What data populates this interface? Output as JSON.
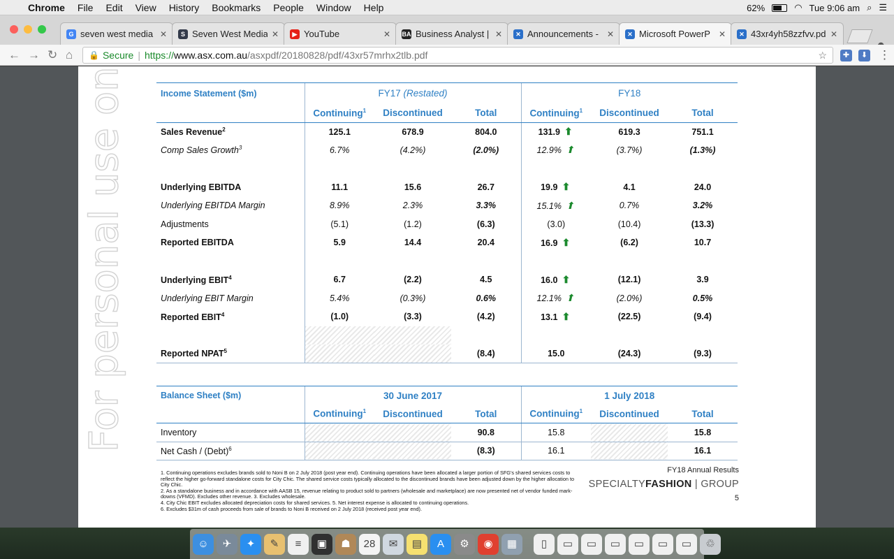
{
  "menubar": {
    "apple": "",
    "app": "Chrome",
    "items": [
      "File",
      "Edit",
      "View",
      "History",
      "Bookmarks",
      "People",
      "Window",
      "Help"
    ],
    "battery": "62%",
    "time": "Tue 9:06 am"
  },
  "tabs": [
    {
      "label": "seven west media",
      "icon": "google-icon",
      "color": "#4285f4",
      "glyph": "G"
    },
    {
      "label": "Seven West Media",
      "icon": "s-logo-icon",
      "color": "#333a4a",
      "glyph": "S"
    },
    {
      "label": "YouTube",
      "icon": "youtube-icon",
      "color": "#e62117",
      "glyph": "▶"
    },
    {
      "label": "Business Analyst |",
      "icon": "ba-icon",
      "color": "#222222",
      "glyph": "BA"
    },
    {
      "label": "Announcements -",
      "icon": "asx-icon",
      "color": "#2a6fc9",
      "glyph": "✕"
    },
    {
      "label": "Microsoft PowerP",
      "icon": "asx-icon",
      "color": "#2a6fc9",
      "glyph": "✕"
    },
    {
      "label": "43xr4yh58zzfvv.pd",
      "icon": "asx-icon",
      "color": "#2a6fc9",
      "glyph": "✕"
    }
  ],
  "address": {
    "secure": "Secure",
    "scheme": "https://",
    "host": "www.asx.com.au",
    "path": "/asxpdf/20180828/pdf/43xr57mrhx2tlb.pdf"
  },
  "watermark": "For personal use only",
  "income": {
    "title": "Income Statement ($m)",
    "fy17": "FY17",
    "fy17_note": "(Restated)",
    "fy18": "FY18",
    "cols": [
      "Continuing",
      "Discontinued",
      "Total",
      "Continuing",
      "Discontinued",
      "Total"
    ],
    "rows": [
      {
        "label": "Sales Revenue",
        "sup": "2",
        "vals": [
          "125.1",
          "678.9",
          "804.0",
          "131.9",
          "619.3",
          "751.1"
        ]
      },
      {
        "label": "Comp Sales Growth",
        "sup": "3",
        "vals": [
          "6.7%",
          "(4.2%)",
          "(2.0%)",
          "12.9%",
          "(3.7%)",
          "(1.3%)"
        ]
      },
      {
        "label": "Underlying EBITDA",
        "vals": [
          "11.1",
          "15.6",
          "26.7",
          "19.9",
          "4.1",
          "24.0"
        ]
      },
      {
        "label": "Underlying EBITDA Margin",
        "vals": [
          "8.9%",
          "2.3%",
          "3.3%",
          "15.1%",
          "0.7%",
          "3.2%"
        ]
      },
      {
        "label": "Adjustments",
        "vals": [
          "(5.1)",
          "(1.2)",
          "(6.3)",
          "(3.0)",
          "(10.4)",
          "(13.3)"
        ]
      },
      {
        "label": "Reported EBITDA",
        "vals": [
          "5.9",
          "14.4",
          "20.4",
          "16.9",
          "(6.2)",
          "10.7"
        ]
      },
      {
        "label": "Underlying EBIT",
        "sup": "4",
        "vals": [
          "6.7",
          "(2.2)",
          "4.5",
          "16.0",
          "(12.1)",
          "3.9"
        ]
      },
      {
        "label": "Underlying EBIT Margin",
        "vals": [
          "5.4%",
          "(0.3%)",
          "0.6%",
          "12.1%",
          "(2.0%)",
          "0.5%"
        ]
      },
      {
        "label": "Reported EBIT",
        "sup": "4",
        "vals": [
          "(1.0)",
          "(3.3)",
          "(4.2)",
          "13.1",
          "(22.5)",
          "(9.4)"
        ]
      },
      {
        "label": "Reported NPAT",
        "sup": "5",
        "vals": [
          "",
          "",
          "(8.4)",
          "15.0",
          "(24.3)",
          "(9.3)"
        ]
      }
    ]
  },
  "balance": {
    "title": "Balance Sheet ($m)",
    "p1": "30 June 2017",
    "p2": "1 July 2018",
    "cols": [
      "Continuing",
      "Discontinued",
      "Total",
      "Continuing",
      "Discontinued",
      "Total"
    ],
    "rows": [
      {
        "label": "Inventory",
        "vals": [
          "",
          "",
          "90.8",
          "15.8",
          "",
          "15.8"
        ]
      },
      {
        "label": "Net Cash / (Debt)",
        "sup": "6",
        "vals": [
          "",
          "",
          "(8.3)",
          "16.1",
          "",
          "16.1"
        ]
      }
    ]
  },
  "footnotes": [
    "1. Continuing operations excludes brands sold to Noni B on 2 July 2018 (post year end). Continuing operations have been allocated a larger portion of SFG's shared services costs to reflect the higher go-forward standalone costs for City Chic. The shared service costs typically allocated to the discontinued brands have been adjusted down by the higher allocation to City Chic.",
    "2. As a standalone business and in accordance with AASB 15, revenue relating to product sold to partners (wholesale and marketplace) are now presented net of vendor funded mark-downs (VFMD). Excludes other revenue.      3. Excludes wholesale.",
    "4. City Chic EBIT excludes allocated depreciation costs for shared services.      5. Net interest expense is allocated to continuing operations.",
    "6. Excludes $31m of cash proceeds from sale of brands to Noni B received on 2 July 2018 (received post year end)."
  ],
  "brand": {
    "report": "FY18 Annual Results",
    "logo_a": "SPECIALTY",
    "logo_b": "FASHION",
    "logo_c": " | GROUP",
    "page": "5"
  },
  "dock": [
    {
      "name": "finder-icon",
      "color": "#3d8fe0",
      "glyph": "☺"
    },
    {
      "name": "launchpad-icon",
      "color": "#7a8a9a",
      "glyph": "✈"
    },
    {
      "name": "safari-icon",
      "color": "#2a8ff0",
      "glyph": "✦"
    },
    {
      "name": "notes-icon",
      "color": "#e8c070",
      "glyph": "✎"
    },
    {
      "name": "reminders-icon",
      "color": "#f0f0f0",
      "glyph": "≡"
    },
    {
      "name": "photo-booth-icon",
      "color": "#303030",
      "glyph": "▣"
    },
    {
      "name": "contacts-icon",
      "color": "#b08858",
      "glyph": "☗"
    },
    {
      "name": "calendar-icon",
      "color": "#f4f4f4",
      "glyph": "28"
    },
    {
      "name": "preview-icon",
      "color": "#d0d8e0",
      "glyph": "✉"
    },
    {
      "name": "stickies-icon",
      "color": "#f6e070",
      "glyph": "▤"
    },
    {
      "name": "app-store-icon",
      "color": "#2a8ff0",
      "glyph": "A"
    },
    {
      "name": "system-preferences-icon",
      "color": "#8a8a8a",
      "glyph": "⚙"
    },
    {
      "name": "chrome-icon",
      "color": "#e04030",
      "glyph": "◉"
    },
    {
      "name": "image-capture-icon",
      "color": "#90a0b0",
      "glyph": "▦"
    },
    {
      "name": "document-icon",
      "color": "#f0f0f0",
      "glyph": "▯"
    },
    {
      "name": "document-icon",
      "color": "#f0f0f0",
      "glyph": "▭"
    },
    {
      "name": "document-icon",
      "color": "#f0f0f0",
      "glyph": "▭"
    },
    {
      "name": "document-icon",
      "color": "#f0f0f0",
      "glyph": "▭"
    },
    {
      "name": "document-icon",
      "color": "#f0f0f0",
      "glyph": "▭"
    },
    {
      "name": "document-icon",
      "color": "#f0f0f0",
      "glyph": "▭"
    },
    {
      "name": "document-icon",
      "color": "#f0f0f0",
      "glyph": "▭"
    },
    {
      "name": "trash-icon",
      "color": "#c8ccd0",
      "glyph": "♲"
    }
  ]
}
